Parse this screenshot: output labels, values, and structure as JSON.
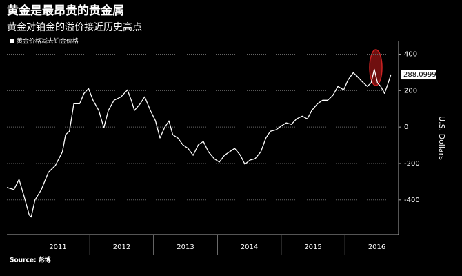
{
  "chart_data": {
    "type": "line",
    "title": "黄金是最昂贵的贵金属",
    "subtitle": "黄金对铂金的溢价接近历史高点",
    "y_axis_label": "U.S. Dollars",
    "source": "Source: 彭博",
    "x": [
      2010.7,
      2010.81,
      2010.89,
      2010.97,
      2011.05,
      2011.08,
      2011.14,
      2011.24,
      2011.35,
      2011.46,
      2011.57,
      2011.62,
      2011.68,
      2011.75,
      2011.84,
      2011.91,
      2011.98,
      2012.05,
      2012.14,
      2012.22,
      2012.29,
      2012.38,
      2012.49,
      2012.59,
      2012.65,
      2012.7,
      2012.79,
      2012.86,
      2012.95,
      2013.03,
      2013.1,
      2013.17,
      2013.24,
      2013.3,
      2013.38,
      2013.46,
      2013.54,
      2013.62,
      2013.7,
      2013.78,
      2013.86,
      2013.95,
      2014.03,
      2014.11,
      2014.19,
      2014.27,
      2014.36,
      2014.43,
      2014.51,
      2014.59,
      2014.68,
      2014.76,
      2014.83,
      2014.92,
      2015.01,
      2015.08,
      2015.16,
      2015.24,
      2015.33,
      2015.41,
      2015.48,
      2015.57,
      2015.65,
      2015.73,
      2015.81,
      2015.89,
      2015.98,
      2016.05,
      2016.13,
      2016.19,
      2016.27,
      2016.35,
      2016.41,
      2016.46,
      2016.51,
      2016.56,
      2016.62,
      2016.67,
      2016.72
    ],
    "series": [
      {
        "name": "黄金价格减去铂金价格",
        "color": "#ffffff",
        "values": [
          -332,
          -343,
          -287,
          -381,
          -483,
          -494,
          -400,
          -343,
          -249,
          -211,
          -136,
          -42,
          -23,
          128,
          128,
          185,
          211,
          147,
          91,
          -4,
          91,
          147,
          166,
          204,
          147,
          91,
          128,
          166,
          91,
          34,
          -60,
          -4,
          34,
          -42,
          -60,
          -98,
          -117,
          -155,
          -98,
          -79,
          -136,
          -174,
          -192,
          -155,
          -136,
          -117,
          -155,
          -204,
          -181,
          -174,
          -136,
          -60,
          -23,
          -15,
          8,
          23,
          15,
          45,
          60,
          45,
          91,
          128,
          147,
          147,
          174,
          223,
          204,
          260,
          298,
          279,
          249,
          223,
          242,
          317,
          242,
          223,
          185,
          234,
          288.0999
        ]
      }
    ],
    "xlim": [
      2010.7,
      2016.84
    ],
    "xticks": [
      {
        "value": 2011.5,
        "label": "2011"
      },
      {
        "value": 2012.5,
        "label": "2012"
      },
      {
        "value": 2013.5,
        "label": "2013"
      },
      {
        "value": 2014.5,
        "label": "2014"
      },
      {
        "value": 2015.5,
        "label": "2015"
      },
      {
        "value": 2016.5,
        "label": "2016"
      }
    ],
    "ylim": [
      -590,
      470
    ],
    "yticks": [
      -400,
      -200,
      0,
      200,
      400
    ],
    "grid": true,
    "legend": "top-left"
  }
}
